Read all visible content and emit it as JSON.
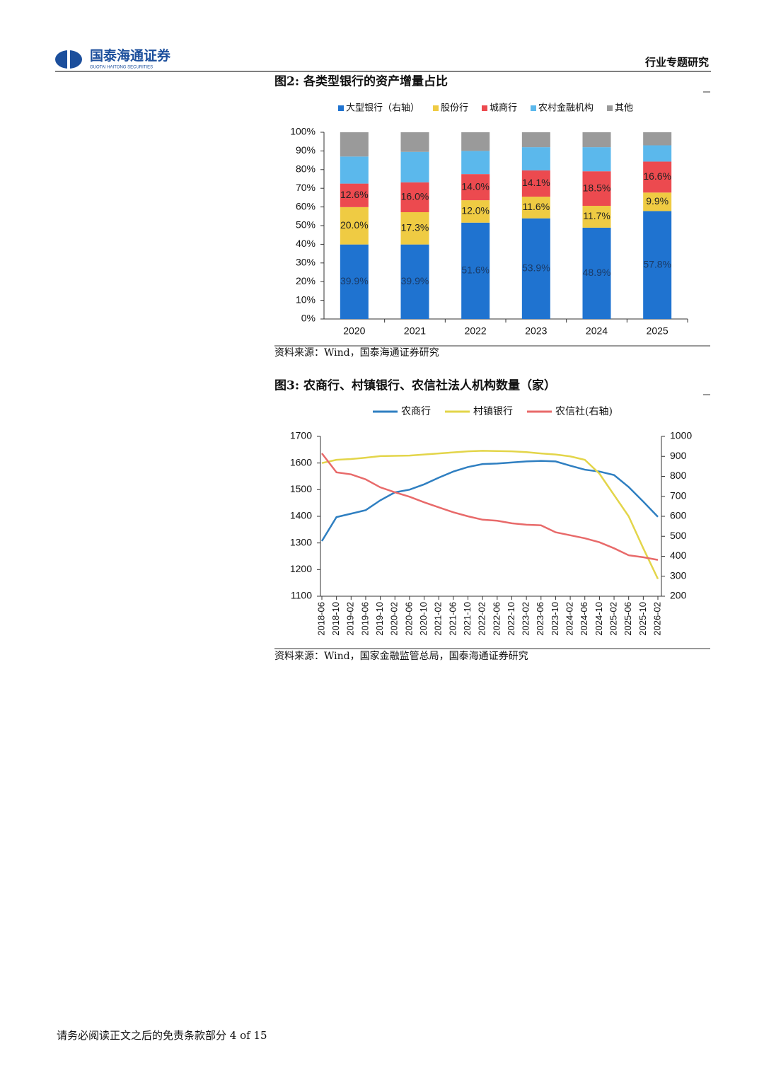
{
  "header": {
    "company": "国泰海通证券",
    "company_en": "GUOTAI HAITONG SECURITIES",
    "section": "行业专题研究"
  },
  "chart_data": [
    {
      "type": "stacked_bar",
      "title": "图2: 各类型银行的资产增量占比",
      "source": "资料来源：Wind，国泰海通证券研究",
      "categories": [
        "2020",
        "2021",
        "2022",
        "2023",
        "2024",
        "2025"
      ],
      "series": [
        {
          "name": "大型银行（右轴）",
          "color": "#1f73d0",
          "values": [
            39.9,
            39.9,
            51.6,
            53.9,
            48.9,
            57.8
          ],
          "value_labels": [
            "39.9%",
            "39.9%",
            "51.6%",
            "53.9%",
            "48.9%",
            "57.8%"
          ]
        },
        {
          "name": "股份行",
          "color": "#efcb43",
          "values": [
            20.0,
            17.3,
            12.0,
            11.6,
            11.7,
            9.9
          ],
          "value_labels": [
            "20.0%",
            "17.3%",
            "12.0%",
            "11.6%",
            "11.7%",
            "9.9%"
          ]
        },
        {
          "name": "城商行",
          "color": "#ec4a4f",
          "values": [
            12.6,
            16.0,
            14.0,
            14.1,
            18.5,
            16.6
          ],
          "value_labels": [
            "12.6%",
            "16.0%",
            "14.0%",
            "14.1%",
            "18.5%",
            "16.6%"
          ]
        },
        {
          "name": "农村金融机构",
          "color": "#5bb8ec",
          "values": [
            14.5,
            16.3,
            12.4,
            12.4,
            12.9,
            8.7
          ]
        },
        {
          "name": "其他",
          "color": "#9a9a9a",
          "values": [
            13.0,
            10.5,
            10.0,
            8.0,
            8.0,
            7.0
          ]
        }
      ],
      "ylim": [
        0,
        100
      ],
      "yticks": [
        {
          "value": 0,
          "label": "0%"
        },
        {
          "value": 10,
          "label": "10%"
        },
        {
          "value": 20,
          "label": "20%"
        },
        {
          "value": 30,
          "label": "30%"
        },
        {
          "value": 40,
          "label": "40%"
        },
        {
          "value": 50,
          "label": "50%"
        },
        {
          "value": 60,
          "label": "60%"
        },
        {
          "value": 70,
          "label": "70%"
        },
        {
          "value": 80,
          "label": "80%"
        },
        {
          "value": 90,
          "label": "90%"
        },
        {
          "value": 100,
          "label": "100%"
        }
      ],
      "legend": "top",
      "grid": false
    },
    {
      "type": "line",
      "title": "图3: 农商行、村镇银行、农信社法人机构数量（家）",
      "source": "资料来源：Wind，国家金融监管总局，国泰海通证券研究",
      "categories": [
        "2018-06",
        "2018-10",
        "2019-02",
        "2019-06",
        "2019-10",
        "2020-02",
        "2020-06",
        "2020-10",
        "2021-02",
        "2021-06",
        "2021-10",
        "2022-02",
        "2022-06",
        "2022-10",
        "2023-02",
        "2023-06",
        "2023-10",
        "2024-02",
        "2024-06",
        "2024-10",
        "2025-02",
        "2025-06",
        "2025-10",
        "2026-02"
      ],
      "series": [
        {
          "name": "农商行",
          "color": "#2f7fc1",
          "values": [
            1307,
            1397,
            1410,
            1423,
            1460,
            1490,
            1500,
            1520,
            1545,
            1568,
            1585,
            1596,
            1598,
            1602,
            1606,
            1608,
            1606,
            1590,
            1575,
            1568,
            1555,
            1510,
            1455,
            1398
          ]
        },
        {
          "name": "村镇银行",
          "color": "#e3d54a",
          "values": [
            1600,
            1612,
            1615,
            1620,
            1626,
            1627,
            1628,
            1632,
            1636,
            1640,
            1644,
            1646,
            1645,
            1644,
            1641,
            1636,
            1632,
            1625,
            1612,
            1560,
            1480,
            1400,
            1280,
            1165
          ]
        },
        {
          "name": "农信社(右轴)",
          "color": "#e86a6a",
          "axis": "y2",
          "values": [
            915,
            820,
            810,
            785,
            745,
            720,
            698,
            670,
            645,
            620,
            600,
            583,
            578,
            565,
            558,
            555,
            520,
            505,
            490,
            470,
            440,
            405,
            395,
            382
          ]
        }
      ],
      "ylim": [
        1100,
        1700
      ],
      "yticks": [
        1100,
        1200,
        1300,
        1400,
        1500,
        1600,
        1700
      ],
      "y2lim": [
        200,
        1000
      ],
      "y2ticks": [
        200,
        300,
        400,
        500,
        600,
        700,
        800,
        900,
        1000
      ],
      "legend": "top",
      "grid": false
    }
  ],
  "footer": {
    "text": "请务必阅读正文之后的免责条款部分 4 of 15"
  }
}
